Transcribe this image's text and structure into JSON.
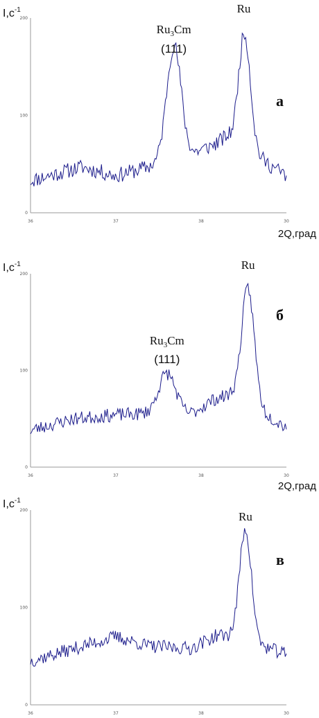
{
  "chart_data": [
    {
      "type": "line",
      "panel_label": "а",
      "ylabel_base": "I,c",
      "ylabel_exp": "-1",
      "xlabel": "2Q,град",
      "x_ticks": [
        "36",
        "37",
        "38",
        "30"
      ],
      "y_ticks": [
        "0",
        "100",
        "200"
      ],
      "ylim": [
        0,
        200
      ],
      "annotations": [
        {
          "text_main": "Ru",
          "text_sub": "3",
          "text_tail": "Cm",
          "hkl": "(111)",
          "x": 37.68
        },
        {
          "text_main": "Ru",
          "x": 38.5
        }
      ],
      "profile": {
        "noise_seed": 11,
        "noise_amp": 8,
        "baseline": [
          [
            36,
            33
          ],
          [
            36.6,
            47
          ],
          [
            37.0,
            38
          ],
          [
            37.3,
            45
          ],
          [
            37.88,
            60
          ],
          [
            38.15,
            70
          ],
          [
            38.3,
            78
          ],
          [
            39.0,
            38
          ]
        ],
        "peaks": [
          {
            "center": 37.68,
            "height": 117,
            "width": 0.085
          },
          {
            "center": 38.51,
            "height": 118,
            "width": 0.07
          }
        ]
      }
    },
    {
      "type": "line",
      "panel_label": "б",
      "ylabel_base": "I,c",
      "ylabel_exp": "-1",
      "xlabel": "2Q,град",
      "x_ticks": [
        "36",
        "37",
        "38",
        "30"
      ],
      "y_ticks": [
        "0",
        "100",
        "200"
      ],
      "ylim": [
        0,
        200
      ],
      "annotations": [
        {
          "text_main": "Ru",
          "text_sub": "3",
          "text_tail": "Cm",
          "hkl": "(111)",
          "x": 37.6
        },
        {
          "text_main": "Ru",
          "x": 38.55
        }
      ],
      "profile": {
        "noise_seed": 23,
        "noise_amp": 7,
        "baseline": [
          [
            36,
            38
          ],
          [
            36.5,
            50
          ],
          [
            37.0,
            54
          ],
          [
            37.3,
            55
          ],
          [
            37.88,
            55
          ],
          [
            38.15,
            70
          ],
          [
            38.35,
            75
          ],
          [
            39.0,
            42
          ]
        ],
        "peaks": [
          {
            "center": 37.6,
            "height": 42,
            "width": 0.1
          },
          {
            "center": 38.55,
            "height": 120,
            "width": 0.075
          }
        ]
      }
    },
    {
      "type": "line",
      "panel_label": "в",
      "ylabel_base": "I,c",
      "ylabel_exp": "-1",
      "xlabel": "",
      "x_ticks": [
        "36",
        "37",
        "38",
        "30"
      ],
      "y_ticks": [
        "0",
        "100",
        "200"
      ],
      "ylim": [
        0,
        200
      ],
      "annotations": [
        {
          "text_main": "Ru",
          "x": 38.52
        }
      ],
      "profile": {
        "noise_seed": 37,
        "noise_amp": 7,
        "baseline": [
          [
            36,
            45
          ],
          [
            36.6,
            60
          ],
          [
            37.0,
            70
          ],
          [
            37.4,
            60
          ],
          [
            37.88,
            58
          ],
          [
            38.2,
            72
          ],
          [
            38.35,
            70
          ],
          [
            39.0,
            52
          ]
        ],
        "peaks": [
          {
            "center": 38.52,
            "height": 115,
            "width": 0.07
          }
        ]
      }
    }
  ]
}
